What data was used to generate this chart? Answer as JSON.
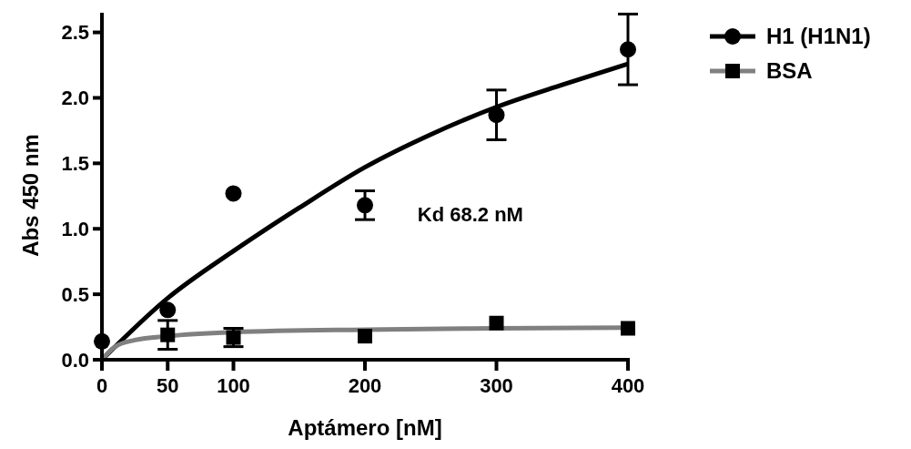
{
  "chart_data": {
    "type": "scatter",
    "xlabel": "Aptámero [nM]",
    "ylabel": "Abs 450 nm",
    "xlim": [
      0,
      400
    ],
    "xticks": [
      0,
      50,
      100,
      200,
      300,
      400
    ],
    "ylim": [
      0,
      2.65
    ],
    "yticks": [
      {
        "value": 0,
        "label": "0.0"
      },
      0.5,
      {
        "value": 1,
        "label": "1.0"
      },
      1.5,
      {
        "value": 2,
        "label": "2.0"
      },
      2.5
    ],
    "grid": false,
    "legend": "top right",
    "annotations": [
      "Kd 68.2 nM"
    ],
    "series": [
      {
        "name": "H1 (H1N1)",
        "marker": "circle",
        "color": "#000000",
        "x": [
          0,
          50,
          100,
          200,
          300,
          400
        ],
        "values": [
          0.14,
          0.38,
          1.27,
          1.18,
          1.87,
          2.37
        ],
        "errors": [
          null,
          null,
          null,
          0.11,
          0.19,
          0.27
        ]
      },
      {
        "name": "BSA",
        "marker": "square",
        "color": "#000000",
        "x": [
          50,
          100,
          200,
          300,
          400
        ],
        "values": [
          0.19,
          0.17,
          0.18,
          0.28,
          0.24
        ],
        "errors": [
          0.11,
          0.07,
          null,
          null,
          null
        ]
      },
      {
        "type": "line",
        "color": "#000000",
        "x": [
          0,
          50,
          100,
          150,
          200,
          250,
          300,
          350,
          400
        ],
        "values": [
          0,
          0.47,
          0.83,
          1.16,
          1.47,
          1.72,
          1.93,
          2.1,
          2.26
        ]
      },
      {
        "type": "line",
        "color": "#808080",
        "x": [
          0,
          10,
          25,
          50,
          100,
          200,
          300,
          400
        ],
        "values": [
          0,
          0.1,
          0.15,
          0.18,
          0.21,
          0.23,
          0.24,
          0.245
        ]
      }
    ]
  }
}
